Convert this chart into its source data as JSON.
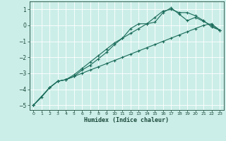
{
  "title": "",
  "xlabel": "Humidex (Indice chaleur)",
  "bg_color": "#cceee8",
  "line_color": "#1a6b5a",
  "grid_color": "#ffffff",
  "xlim": [
    -0.5,
    23.5
  ],
  "ylim": [
    -5.3,
    1.5
  ],
  "xticks": [
    0,
    1,
    2,
    3,
    4,
    5,
    6,
    7,
    8,
    9,
    10,
    11,
    12,
    13,
    14,
    15,
    16,
    17,
    18,
    19,
    20,
    21,
    22,
    23
  ],
  "yticks": [
    -5,
    -4,
    -3,
    -2,
    -1,
    0,
    1
  ],
  "line1_x": [
    0,
    1,
    2,
    3,
    4,
    5,
    6,
    7,
    8,
    9,
    10,
    11,
    12,
    13,
    14,
    15,
    16,
    17,
    18,
    19,
    20,
    21,
    22,
    23
  ],
  "line1_y": [
    -5.0,
    -4.5,
    -3.9,
    -3.5,
    -3.4,
    -3.2,
    -3.0,
    -2.8,
    -2.6,
    -2.4,
    -2.2,
    -2.0,
    -1.8,
    -1.6,
    -1.4,
    -1.2,
    -1.0,
    -0.8,
    -0.6,
    -0.4,
    -0.2,
    0.0,
    0.1,
    -0.3
  ],
  "line2_x": [
    0,
    2,
    3,
    4,
    5,
    6,
    7,
    8,
    9,
    10,
    11,
    12,
    13,
    14,
    15,
    16,
    17,
    18,
    19,
    20,
    21,
    22,
    23
  ],
  "line2_y": [
    -5.0,
    -3.9,
    -3.5,
    -3.4,
    -3.1,
    -2.7,
    -2.3,
    -1.9,
    -1.5,
    -1.1,
    -0.8,
    -0.5,
    -0.2,
    0.1,
    0.5,
    0.9,
    1.0,
    0.8,
    0.8,
    0.6,
    0.3,
    -0.1,
    -0.3
  ],
  "line3_x": [
    0,
    2,
    3,
    4,
    5,
    6,
    7,
    8,
    9,
    10,
    11,
    12,
    13,
    14,
    15,
    16,
    17,
    18,
    19,
    20,
    21,
    22,
    23
  ],
  "line3_y": [
    -5.0,
    -3.9,
    -3.5,
    -3.4,
    -3.2,
    -2.8,
    -2.5,
    -2.1,
    -1.7,
    -1.2,
    -0.8,
    -0.2,
    0.1,
    0.1,
    0.2,
    0.8,
    1.1,
    0.7,
    0.3,
    0.5,
    0.25,
    0.0,
    -0.3
  ]
}
